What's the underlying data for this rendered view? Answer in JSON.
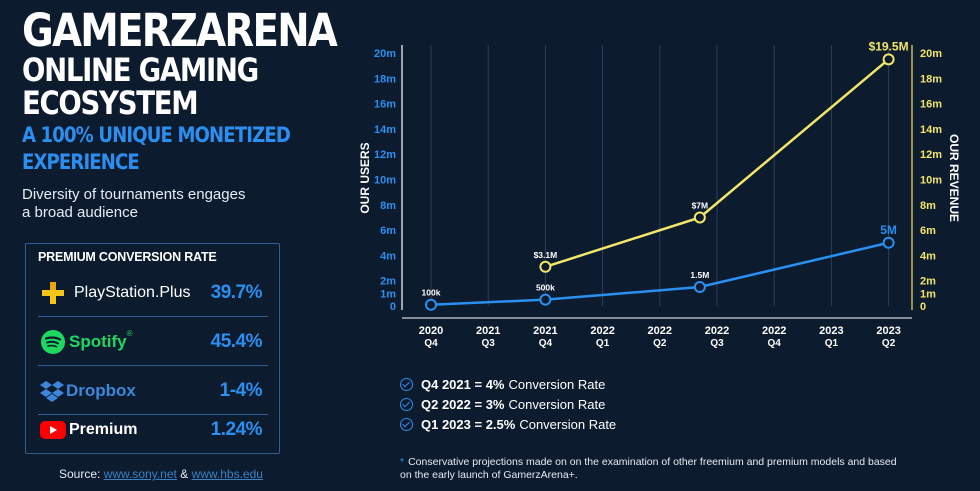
{
  "header": {
    "title_line1": "GAMERZARENA",
    "title_line2": "ONLINE GAMING",
    "title_line3": "ECOSYSTEM",
    "subtitle_line1": "A 100% UNIQUE MONETIZED",
    "subtitle_line2": "EXPERIENCE",
    "description": "Diversity of tournaments engages a broad audience"
  },
  "conversion": {
    "title": "PREMIUM CONVERSION RATE",
    "rows": [
      {
        "brand": "PlayStation",
        "brand_suffix": ".Plus",
        "rate": "39.7%",
        "icon": "playstation-plus-icon"
      },
      {
        "brand": "Spotify",
        "brand_suffix": "®",
        "rate": "45.4%",
        "icon": "spotify-icon"
      },
      {
        "brand": "Dropbox",
        "brand_suffix": "",
        "rate": "1-4%",
        "icon": "dropbox-icon"
      },
      {
        "brand": "Premium",
        "brand_suffix": "",
        "rate": "1.24%",
        "icon": "youtube-icon"
      }
    ]
  },
  "source": {
    "label": "Source:",
    "link1": "www.sony.net",
    "amp": "&",
    "link2": "www.hbs.edu"
  },
  "notes": [
    {
      "bold": "Q4 2021 = 4%",
      "text": "Conversion Rate"
    },
    {
      "bold": "Q2 2022 = 3%",
      "text": "Conversion Rate"
    },
    {
      "bold": "Q1 2023 = 2.5%",
      "text": "Conversion Rate"
    }
  ],
  "footnote": {
    "star": "*",
    "text": "Conservative projections made on on the examination of other freemium and premium models and based on the early launch of GamerzArena+."
  },
  "colors": {
    "bg": "#0c1b2e",
    "blue": "#2a8ff0",
    "yellow": "#f2e56b",
    "grid": "#2d3f55"
  },
  "chart_data": {
    "type": "line",
    "categories": [
      [
        "2020",
        "Q4"
      ],
      [
        "2021",
        "Q3"
      ],
      [
        "2021",
        "Q4"
      ],
      [
        "2022",
        "Q1"
      ],
      [
        "2022",
        "Q2"
      ],
      [
        "2022",
        "Q3"
      ],
      [
        "2022",
        "Q4"
      ],
      [
        "2023",
        "Q1"
      ],
      [
        "2023",
        "Q2"
      ]
    ],
    "y_left": {
      "label": "OUR USERS",
      "ticks": [
        "0",
        "1m",
        "2m",
        "4m",
        "6m",
        "8m",
        "10m",
        "12m",
        "14m",
        "16m",
        "18m",
        "20m"
      ],
      "range": [
        0,
        20
      ]
    },
    "y_right": {
      "label": "OUR REVENUE",
      "ticks": [
        "0",
        "1m",
        "2m",
        "4m",
        "6m",
        "8m",
        "10m",
        "12m",
        "14m",
        "16m",
        "18m",
        "20m"
      ],
      "range": [
        0,
        20
      ]
    },
    "series": [
      {
        "name": "Users",
        "color": "#2a8ff0",
        "points": [
          {
            "x": 0,
            "y": 0.1,
            "label": "100k"
          },
          {
            "x": 2,
            "y": 0.5,
            "label": "500k"
          },
          {
            "x": 4.7,
            "y": 1.5,
            "label": "1.5M"
          },
          {
            "x": 8,
            "y": 5,
            "label": "5M"
          }
        ]
      },
      {
        "name": "Revenue",
        "color": "#f2e56b",
        "points": [
          {
            "x": 2,
            "y": 3.1,
            "label": "$3.1M"
          },
          {
            "x": 4.7,
            "y": 7,
            "label": "$7M"
          },
          {
            "x": 8,
            "y": 19.5,
            "label": "$19.5M"
          }
        ]
      }
    ]
  }
}
